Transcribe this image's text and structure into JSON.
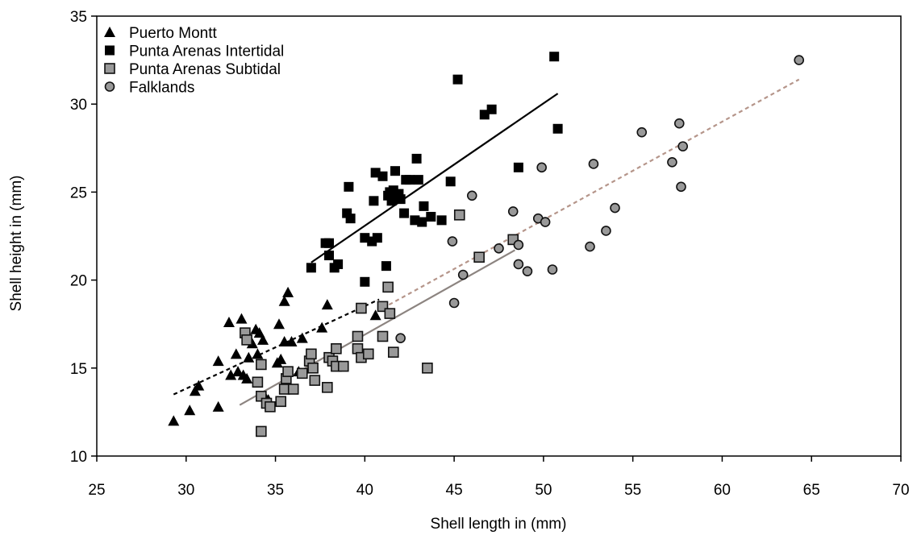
{
  "chart_data": {
    "type": "scatter",
    "title": "",
    "xlabel": "Shell length in (mm)",
    "ylabel": "Shell height in (mm)",
    "xlim": [
      25,
      70
    ],
    "ylim": [
      10,
      35
    ],
    "x_ticks": [
      25,
      30,
      35,
      40,
      45,
      50,
      55,
      60,
      65,
      70
    ],
    "y_ticks": [
      10,
      15,
      20,
      25,
      30,
      35
    ],
    "grid": false,
    "legend_position": "top-left",
    "series": [
      {
        "name": "Puerto Montt",
        "marker": "triangle",
        "fill": "#000000",
        "points": [
          [
            29.3,
            12.0
          ],
          [
            30.2,
            12.6
          ],
          [
            30.5,
            13.7
          ],
          [
            30.7,
            14.0
          ],
          [
            31.8,
            12.8
          ],
          [
            31.8,
            15.4
          ],
          [
            32.4,
            17.6
          ],
          [
            32.5,
            14.6
          ],
          [
            32.8,
            15.8
          ],
          [
            32.9,
            14.8
          ],
          [
            33.1,
            17.8
          ],
          [
            33.2,
            14.6
          ],
          [
            33.4,
            14.4
          ],
          [
            33.5,
            15.6
          ],
          [
            33.7,
            16.4
          ],
          [
            33.9,
            17.2
          ],
          [
            34.0,
            15.8
          ],
          [
            34.1,
            17.0
          ],
          [
            34.2,
            15.2
          ],
          [
            34.3,
            16.6
          ],
          [
            34.4,
            13.4
          ],
          [
            34.6,
            13.2
          ],
          [
            35.1,
            15.3
          ],
          [
            35.2,
            17.5
          ],
          [
            35.3,
            15.5
          ],
          [
            35.5,
            16.5
          ],
          [
            35.5,
            18.8
          ],
          [
            35.7,
            19.3
          ],
          [
            35.9,
            16.5
          ],
          [
            36.5,
            16.7
          ],
          [
            36.3,
            14.8
          ],
          [
            37.6,
            17.3
          ],
          [
            37.9,
            18.6
          ],
          [
            40.6,
            18.0
          ]
        ]
      },
      {
        "name": "Punta Arenas Intertidal",
        "marker": "square",
        "fill": "#000000",
        "points": [
          [
            37.0,
            20.7
          ],
          [
            37.8,
            22.1
          ],
          [
            38.0,
            22.1
          ],
          [
            38.0,
            21.4
          ],
          [
            38.3,
            20.7
          ],
          [
            38.5,
            20.9
          ],
          [
            39.0,
            23.8
          ],
          [
            39.1,
            25.3
          ],
          [
            39.2,
            23.5
          ],
          [
            40.0,
            22.4
          ],
          [
            40.0,
            19.9
          ],
          [
            40.4,
            22.2
          ],
          [
            40.5,
            24.5
          ],
          [
            40.6,
            26.1
          ],
          [
            40.7,
            22.4
          ],
          [
            41.0,
            25.9
          ],
          [
            41.2,
            20.8
          ],
          [
            41.3,
            24.8
          ],
          [
            41.4,
            25.0
          ],
          [
            41.5,
            24.5
          ],
          [
            41.6,
            25.1
          ],
          [
            41.7,
            26.2
          ],
          [
            41.9,
            24.9
          ],
          [
            42.0,
            24.6
          ],
          [
            42.2,
            23.8
          ],
          [
            42.3,
            25.7
          ],
          [
            42.5,
            25.7
          ],
          [
            42.8,
            23.4
          ],
          [
            42.9,
            26.9
          ],
          [
            43.0,
            25.7
          ],
          [
            43.2,
            23.3
          ],
          [
            43.3,
            24.2
          ],
          [
            43.7,
            23.6
          ],
          [
            44.3,
            23.4
          ],
          [
            44.8,
            25.6
          ],
          [
            45.2,
            31.4
          ],
          [
            46.7,
            29.4
          ],
          [
            47.1,
            29.7
          ],
          [
            48.6,
            26.4
          ],
          [
            50.6,
            32.7
          ],
          [
            50.8,
            28.6
          ]
        ]
      },
      {
        "name": "Punta Arenas Subtidal",
        "marker": "square",
        "fill": "#999999",
        "points": [
          [
            33.3,
            17.0
          ],
          [
            33.4,
            16.6
          ],
          [
            34.0,
            14.2
          ],
          [
            34.2,
            13.4
          ],
          [
            34.2,
            15.2
          ],
          [
            34.2,
            11.4
          ],
          [
            34.5,
            13.0
          ],
          [
            34.7,
            12.8
          ],
          [
            35.3,
            13.1
          ],
          [
            35.5,
            13.8
          ],
          [
            35.6,
            14.4
          ],
          [
            35.7,
            14.8
          ],
          [
            36.0,
            13.8
          ],
          [
            36.5,
            14.7
          ],
          [
            36.9,
            15.4
          ],
          [
            37.0,
            15.8
          ],
          [
            37.1,
            15.0
          ],
          [
            37.2,
            14.3
          ],
          [
            37.9,
            13.9
          ],
          [
            38.0,
            15.6
          ],
          [
            38.2,
            15.4
          ],
          [
            38.4,
            15.1
          ],
          [
            38.4,
            16.1
          ],
          [
            38.8,
            15.1
          ],
          [
            39.6,
            16.1
          ],
          [
            39.6,
            16.8
          ],
          [
            39.8,
            18.4
          ],
          [
            39.8,
            15.6
          ],
          [
            40.2,
            15.8
          ],
          [
            41.0,
            18.5
          ],
          [
            41.0,
            16.8
          ],
          [
            41.3,
            19.6
          ],
          [
            41.4,
            18.1
          ],
          [
            41.6,
            15.9
          ],
          [
            43.5,
            15.0
          ],
          [
            45.3,
            23.7
          ],
          [
            46.4,
            21.3
          ],
          [
            48.3,
            22.3
          ]
        ]
      },
      {
        "name": "Falklands",
        "marker": "circle",
        "fill": "#999999",
        "points": [
          [
            42.0,
            16.7
          ],
          [
            44.9,
            22.2
          ],
          [
            45.0,
            18.7
          ],
          [
            45.5,
            20.3
          ],
          [
            46.0,
            24.8
          ],
          [
            47.5,
            21.8
          ],
          [
            48.3,
            23.9
          ],
          [
            48.6,
            20.9
          ],
          [
            48.6,
            22.0
          ],
          [
            49.1,
            20.5
          ],
          [
            49.7,
            23.5
          ],
          [
            49.9,
            26.4
          ],
          [
            50.1,
            23.3
          ],
          [
            50.5,
            20.6
          ],
          [
            52.6,
            21.9
          ],
          [
            52.8,
            26.6
          ],
          [
            53.5,
            22.8
          ],
          [
            54.0,
            24.1
          ],
          [
            55.5,
            28.4
          ],
          [
            57.2,
            26.7
          ],
          [
            57.6,
            28.9
          ],
          [
            57.7,
            25.3
          ],
          [
            57.8,
            27.6
          ],
          [
            64.3,
            32.5
          ]
        ]
      }
    ],
    "trend_lines": [
      {
        "series": "Puerto Montt",
        "style": "dashed",
        "color": "#000000",
        "from": [
          29.3,
          13.5
        ],
        "to": [
          40.8,
          18.9
        ]
      },
      {
        "series": "Punta Arenas Intertidal",
        "style": "solid",
        "color": "#000000",
        "from": [
          37.0,
          21.0
        ],
        "to": [
          50.8,
          30.6
        ]
      },
      {
        "series": "Punta Arenas Subtidal",
        "style": "solid",
        "color": "#8c8480",
        "from": [
          33.0,
          12.9
        ],
        "to": [
          48.4,
          21.7
        ]
      },
      {
        "series": "Falklands",
        "style": "dashed",
        "color": "#b5958a",
        "from": [
          41.0,
          18.4
        ],
        "to": [
          64.3,
          31.4
        ]
      }
    ]
  }
}
